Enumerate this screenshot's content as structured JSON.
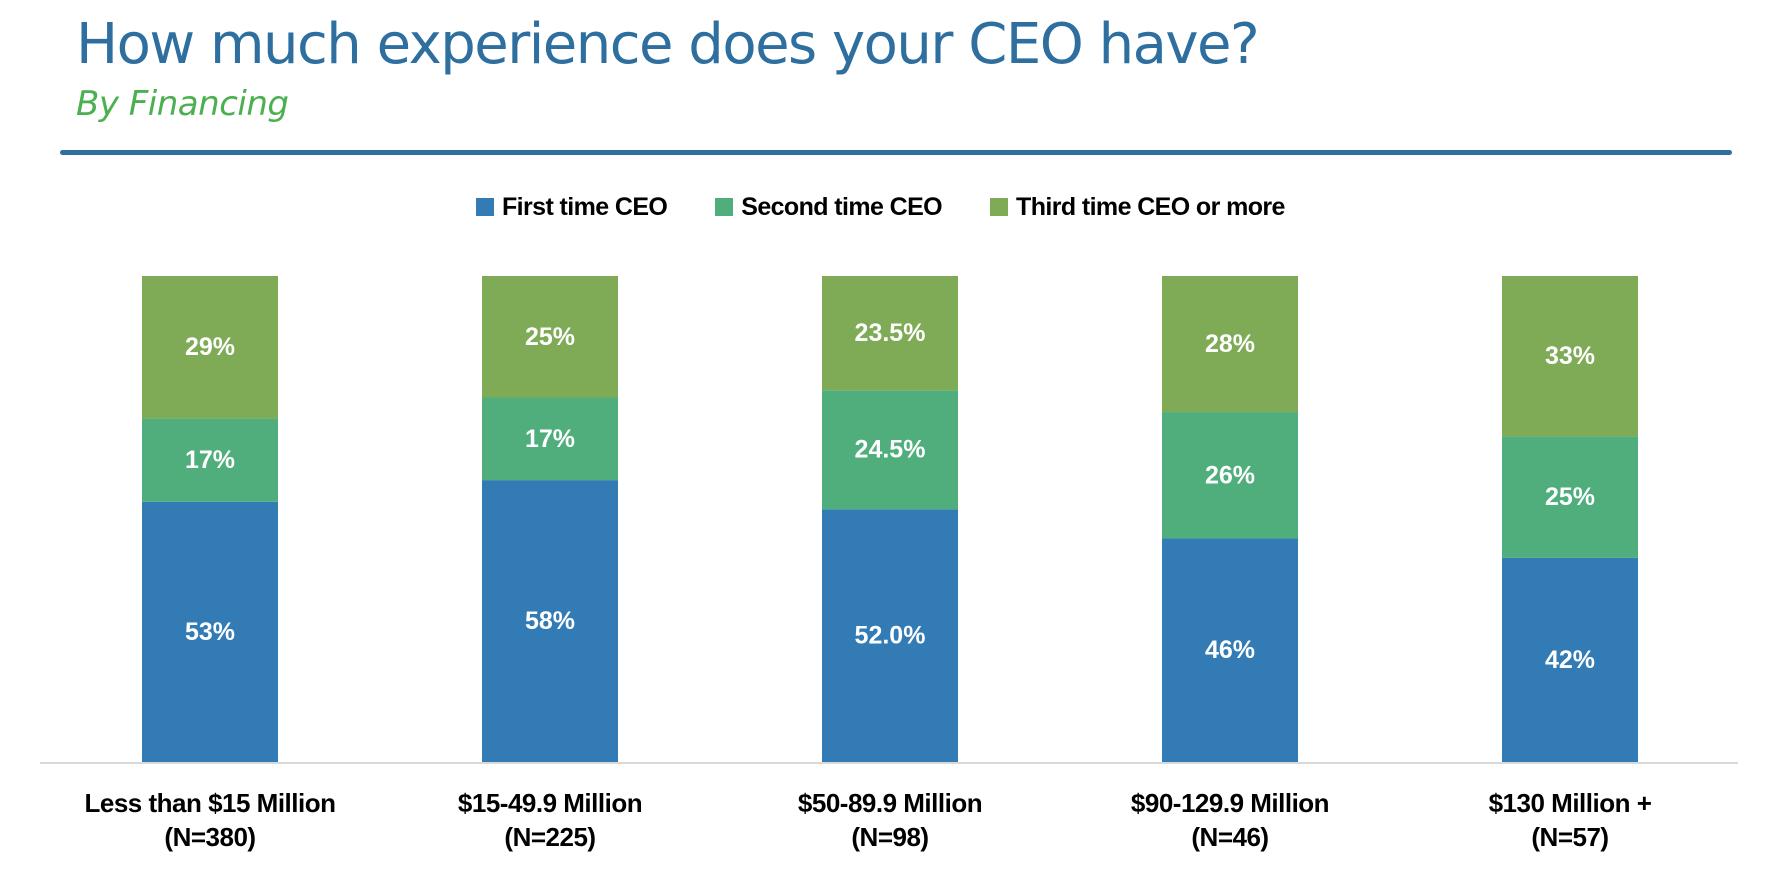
{
  "header": {
    "title": "How much experience does your CEO have?",
    "subtitle": "By Financing"
  },
  "colors": {
    "title": "#2E6FA0",
    "subtitle": "#4CAF50",
    "rule": "#2E6FA0",
    "axis": "#D9D9D9"
  },
  "chart_data": {
    "type": "bar",
    "stacked": true,
    "normalized_100_percent": true,
    "title": "How much experience does your CEO have?",
    "subtitle": "By Financing",
    "xlabel": "",
    "ylabel": "",
    "grid": false,
    "legend_position": "top-center",
    "categories": [
      "Less than $15 Million",
      "$15-49.9 Million",
      "$50-89.9 Million",
      "$90-129.9 Million",
      "$130 Million +"
    ],
    "category_counts": [
      "(N=380)",
      "(N=225)",
      "(N=98)",
      "(N=46)",
      "(N=57)"
    ],
    "series": [
      {
        "name": "First time CEO",
        "color": "#337BB5",
        "values": [
          53,
          58,
          52.0,
          46,
          42
        ],
        "labels": [
          "53%",
          "58%",
          "52.0%",
          "46%",
          "42%"
        ]
      },
      {
        "name": "Second time CEO",
        "color": "#4FAE7C",
        "values": [
          17,
          17,
          24.5,
          26,
          25
        ],
        "labels": [
          "17%",
          "17%",
          "24.5%",
          "26%",
          "25%"
        ]
      },
      {
        "name": "Third time CEO or more",
        "color": "#7FAA56",
        "values": [
          29,
          25,
          23.5,
          28,
          33
        ],
        "labels": [
          "29%",
          "25%",
          "23.5%",
          "28%",
          "33%"
        ]
      }
    ]
  }
}
